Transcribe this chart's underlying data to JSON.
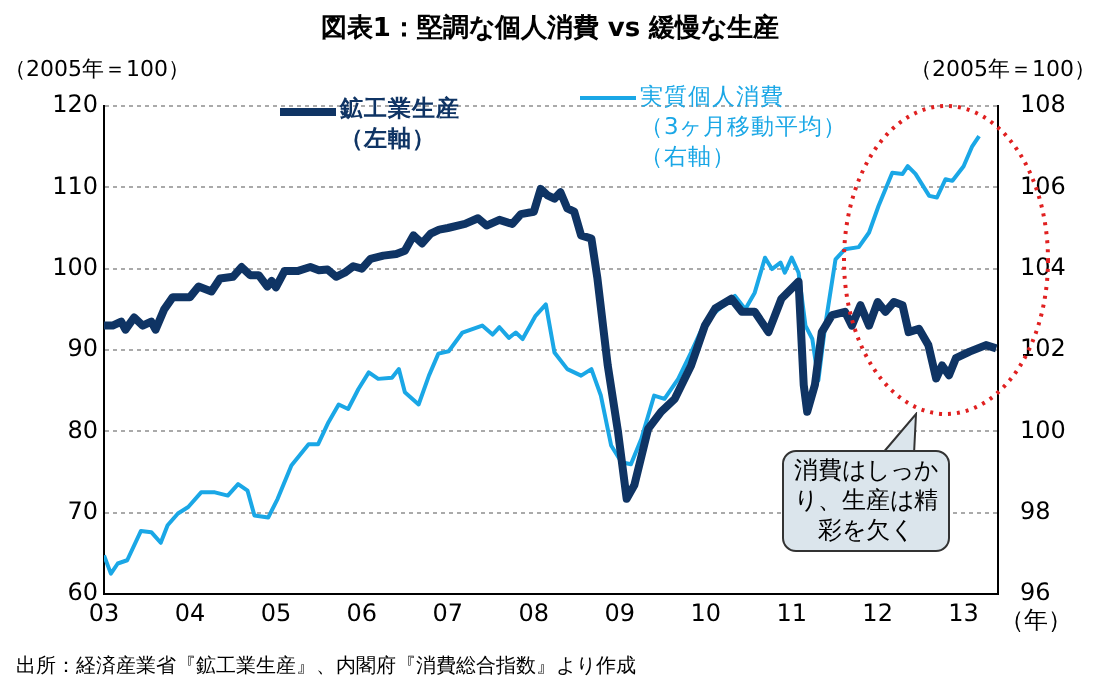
{
  "chart_data": {
    "type": "line",
    "title": "図表1：堅調な個人消費 vs 緩慢な生産",
    "ylabel": "（2005年＝100）",
    "y2label": "（2005年＝100）",
    "xlabel": "（年）",
    "annotations": [
      "消費はしっかり、生産は精彩を欠く",
      "出所：経済産業省『鉱工業生産』、内閣府『消費総合指数』より作成"
    ],
    "xlim": [
      2003,
      2013.4
    ],
    "xticks": [
      {
        "value": 2003,
        "label": "03"
      },
      {
        "value": 2004,
        "label": "04"
      },
      {
        "value": 2005,
        "label": "05"
      },
      {
        "value": 2006,
        "label": "06"
      },
      {
        "value": 2007,
        "label": "07"
      },
      {
        "value": 2008,
        "label": "08"
      },
      {
        "value": 2009,
        "label": "09"
      },
      {
        "value": 2010,
        "label": "10"
      },
      {
        "value": 2011,
        "label": "11"
      },
      {
        "value": 2012,
        "label": "12"
      },
      {
        "value": 2013,
        "label": "13"
      }
    ],
    "ylim": [
      60,
      120
    ],
    "yticks": [
      60,
      70,
      80,
      90,
      100,
      110,
      120
    ],
    "y2lim": [
      96,
      108
    ],
    "y2ticks": [
      96,
      98,
      100,
      102,
      104,
      106,
      108
    ],
    "grid": "y",
    "legend": "top",
    "marker": "none",
    "series": [
      {
        "name": "鉱工業生産（左軸）",
        "color": "#0f3464",
        "x": [
          2003.0,
          2003.1,
          2003.2,
          2003.25,
          2003.35,
          2003.45,
          2003.55,
          2003.6,
          2003.7,
          2003.8,
          2003.9,
          2004.0,
          2004.1,
          2004.25,
          2004.35,
          2004.5,
          2004.6,
          2004.7,
          2004.8,
          2004.9,
          2004.95,
          2005.0,
          2005.1,
          2005.25,
          2005.4,
          2005.5,
          2005.6,
          2005.7,
          2005.8,
          2005.9,
          2006.0,
          2006.1,
          2006.25,
          2006.4,
          2006.5,
          2006.6,
          2006.7,
          2006.8,
          2006.9,
          2007.0,
          2007.2,
          2007.35,
          2007.45,
          2007.6,
          2007.75,
          2007.85,
          2008.0,
          2008.08,
          2008.16,
          2008.24,
          2008.31,
          2008.39,
          2008.47,
          2008.55,
          2008.67,
          2008.74,
          2008.86,
          2008.98,
          2009.08,
          2009.17,
          2009.33,
          2009.48,
          2009.64,
          2009.83,
          2009.99,
          2010.11,
          2010.3,
          2010.42,
          2010.57,
          2010.73,
          2010.88,
          2011.08,
          2011.14,
          2011.18,
          2011.27,
          2011.35,
          2011.47,
          2011.62,
          2011.7,
          2011.8,
          2011.9,
          2012.0,
          2012.09,
          2012.19,
          2012.29,
          2012.36,
          2012.48,
          2012.59,
          2012.68,
          2012.75,
          2012.83,
          2012.91,
          2013.07,
          2013.26,
          2013.38
        ],
        "values": [
          93,
          93,
          93.5,
          92.5,
          94,
          93,
          93.5,
          92.5,
          95,
          96.5,
          96.5,
          96.5,
          97.8,
          97.2,
          98.8,
          99,
          100.2,
          99.2,
          99.2,
          97.8,
          98.5,
          97.7,
          99.7,
          99.7,
          100.2,
          99.8,
          99.9,
          99,
          99.5,
          100.3,
          100,
          101.2,
          101.6,
          101.8,
          102.2,
          104.1,
          103.1,
          104.3,
          104.8,
          105,
          105.5,
          106.2,
          105.3,
          106,
          105.5,
          106.7,
          107,
          109.8,
          109,
          108.6,
          109.4,
          107.4,
          107,
          104.1,
          103.7,
          98.8,
          88.1,
          79.9,
          71.7,
          73.4,
          80.3,
          82.4,
          84,
          88.1,
          93,
          95.1,
          96.3,
          94.7,
          94.7,
          92.2,
          96.3,
          98.4,
          85.7,
          82.4,
          85.7,
          92.2,
          94.3,
          94.7,
          93,
          95.5,
          93,
          95.9,
          94.7,
          95.9,
          95.5,
          92.2,
          92.6,
          90.6,
          86.5,
          88.1,
          86.9,
          89,
          89.8,
          90.6,
          90.2
        ]
      },
      {
        "name": "実質個人消費（3ヶ月移動平均）（右軸）",
        "color": "#1aa7e6",
        "axis": "y2",
        "x": [
          2003.0,
          2003.08,
          2003.16,
          2003.27,
          2003.43,
          2003.55,
          2003.66,
          2003.74,
          2003.86,
          2003.98,
          2004.13,
          2004.29,
          2004.44,
          2004.56,
          2004.67,
          2004.75,
          2004.91,
          2005.02,
          2005.18,
          2005.38,
          2005.49,
          2005.61,
          2005.73,
          2005.84,
          2005.96,
          2006.08,
          2006.19,
          2006.35,
          2006.43,
          2006.5,
          2006.66,
          2006.78,
          2006.89,
          2007.01,
          2007.17,
          2007.4,
          2007.52,
          2007.6,
          2007.71,
          2007.79,
          2007.87,
          2008.02,
          2008.14,
          2008.24,
          2008.39,
          2008.55,
          2008.67,
          2008.78,
          2008.9,
          2009.02,
          2009.13,
          2009.25,
          2009.4,
          2009.52,
          2009.68,
          2009.83,
          2009.99,
          2010.15,
          2010.34,
          2010.46,
          2010.57,
          2010.69,
          2010.77,
          2010.87,
          2010.92,
          2011.0,
          2011.08,
          2011.16,
          2011.24,
          2011.31,
          2011.39,
          2011.51,
          2011.62,
          2011.78,
          2011.9,
          2012.01,
          2012.17,
          2012.29,
          2012.35,
          2012.44,
          2012.6,
          2012.69,
          2012.79,
          2012.87,
          2013.0,
          2013.1,
          2013.18
        ],
        "values": [
          96.95,
          96.5,
          96.75,
          96.83,
          97.55,
          97.52,
          97.26,
          97.69,
          97.98,
          98.14,
          98.5,
          98.5,
          98.42,
          98.7,
          98.54,
          97.93,
          97.88,
          98.34,
          99.16,
          99.68,
          99.68,
          100.22,
          100.66,
          100.55,
          101.04,
          101.45,
          101.29,
          101.32,
          101.53,
          100.96,
          100.66,
          101.37,
          101.91,
          101.97,
          102.43,
          102.6,
          102.38,
          102.56,
          102.3,
          102.43,
          102.27,
          102.84,
          103.12,
          101.94,
          101.53,
          101.37,
          101.53,
          100.88,
          99.65,
          99.24,
          99.19,
          99.81,
          100.88,
          100.8,
          101.29,
          101.94,
          102.68,
          103,
          103.33,
          103,
          103.41,
          104.27,
          103.99,
          104.15,
          103.9,
          104.27,
          103.9,
          102.6,
          102.27,
          101.25,
          102.6,
          104.23,
          104.48,
          104.53,
          104.89,
          105.54,
          106.36,
          106.33,
          106.52,
          106.33,
          105.79,
          105.75,
          106.2,
          106.16,
          106.52,
          107.01,
          107.26
        ]
      }
    ]
  }
}
